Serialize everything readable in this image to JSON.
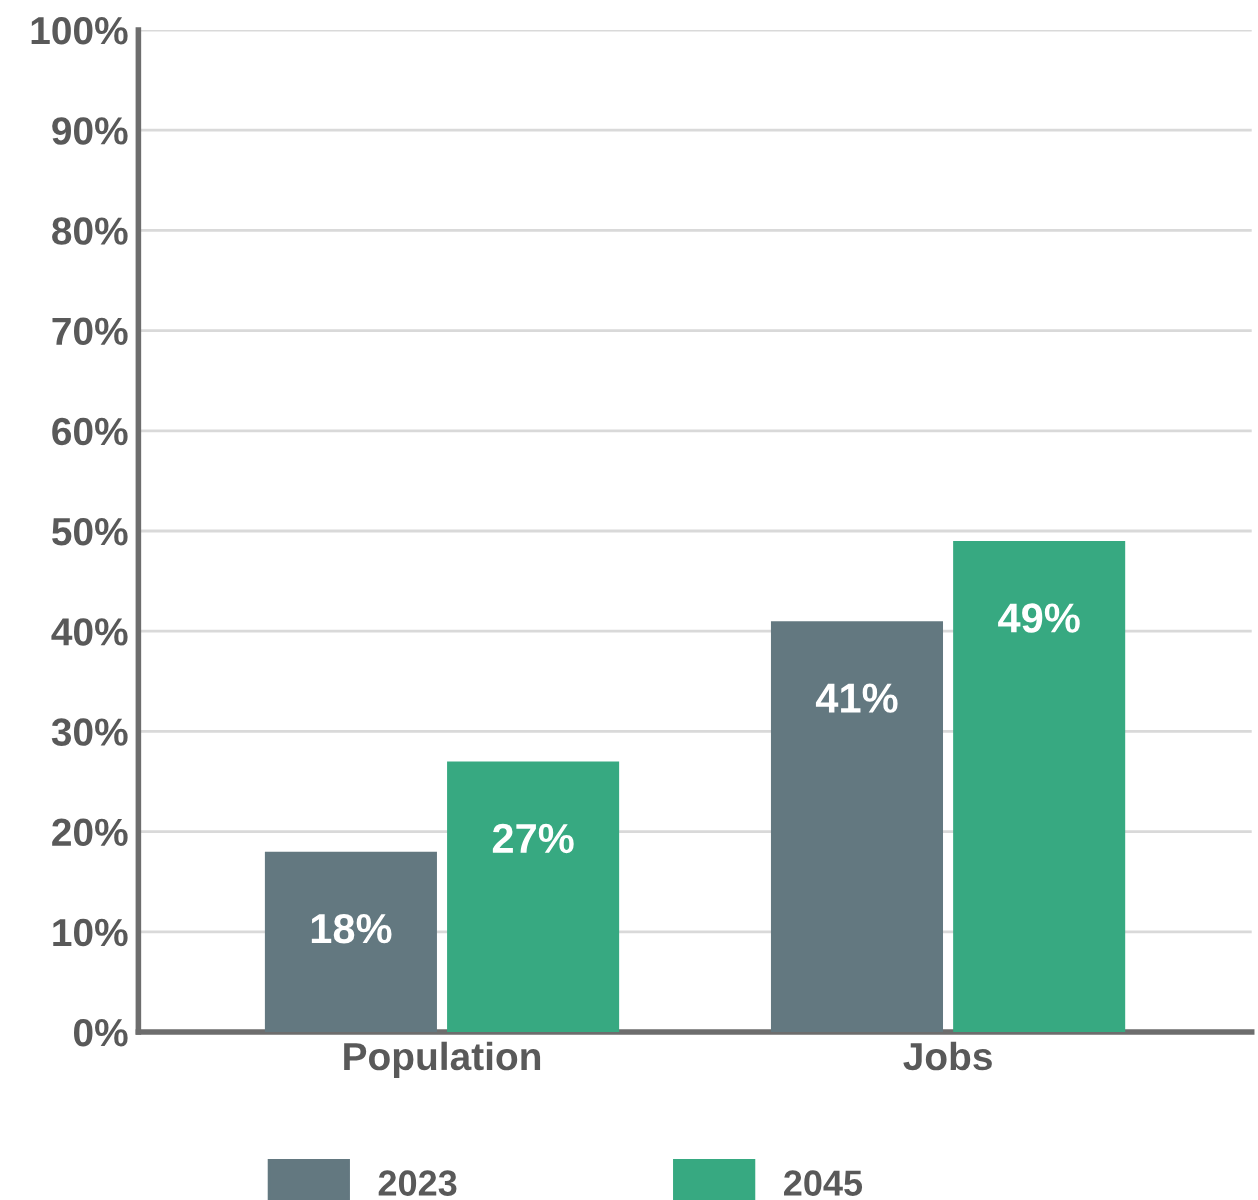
{
  "chart_data": {
    "type": "bar",
    "categories": [
      "Population",
      "Jobs"
    ],
    "series": [
      {
        "name": "2023",
        "color": "#637880",
        "values": [
          18,
          41
        ],
        "value_labels": [
          "18%",
          "41%"
        ]
      },
      {
        "name": "2045",
        "color": "#37a981",
        "values": [
          27,
          49
        ],
        "value_labels": [
          "27%",
          "49%"
        ]
      }
    ],
    "ylim": [
      0,
      100
    ],
    "yticks": [
      {
        "value": 0,
        "label": "0%"
      },
      {
        "value": 10,
        "label": "10%"
      },
      {
        "value": 20,
        "label": "20%"
      },
      {
        "value": 30,
        "label": "30%"
      },
      {
        "value": 40,
        "label": "40%"
      },
      {
        "value": 50,
        "label": "50%"
      },
      {
        "value": 60,
        "label": "60%"
      },
      {
        "value": 70,
        "label": "70%"
      },
      {
        "value": 80,
        "label": "80%"
      },
      {
        "value": 90,
        "label": "90%"
      },
      {
        "value": 100,
        "label": "100%"
      }
    ],
    "grid": "y",
    "legend": "bottom"
  }
}
